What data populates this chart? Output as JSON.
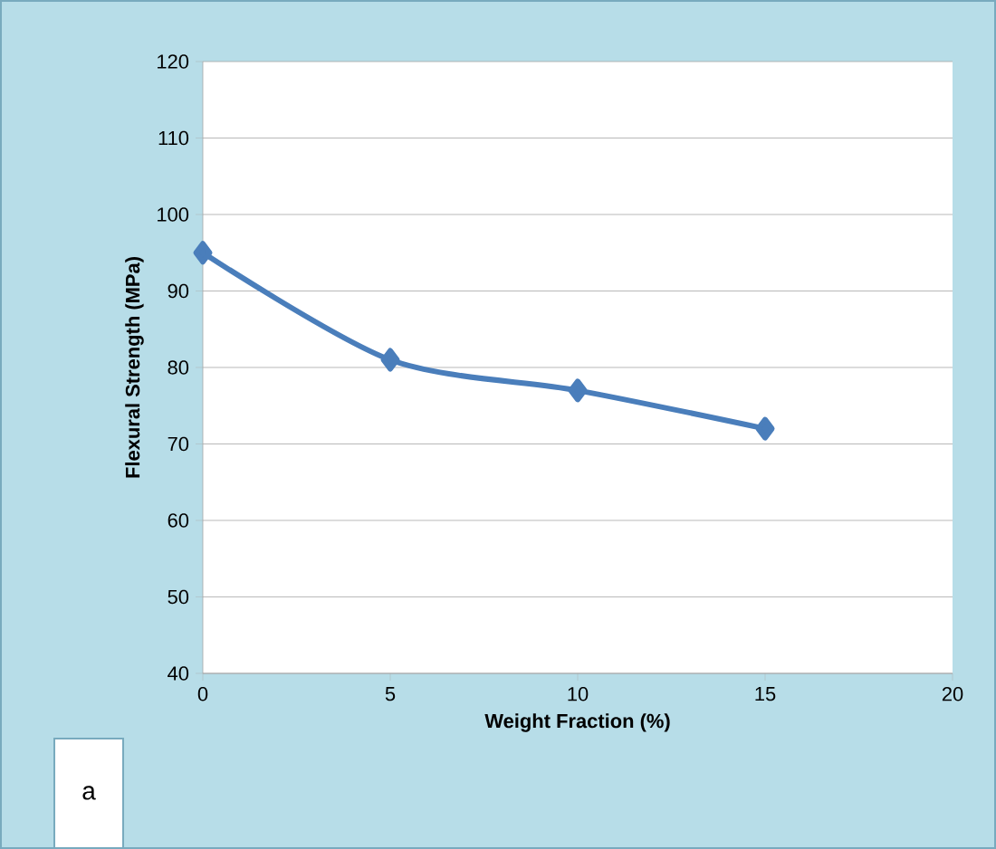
{
  "chart_data": {
    "type": "line",
    "xlabel": "Weight Fraction (%)",
    "ylabel": "Flexural Strength (MPa)",
    "x": [
      0,
      5,
      10,
      15
    ],
    "series": [
      {
        "color": "#4a7ebb",
        "values": [
          95,
          81,
          77,
          72
        ]
      }
    ],
    "xlim": [
      0,
      20
    ],
    "xticks": [
      0,
      5,
      10,
      15,
      20
    ],
    "ylim": [
      40,
      120
    ],
    "yticks": [
      40,
      50,
      60,
      70,
      80,
      90,
      100,
      110,
      120
    ],
    "grid": "y",
    "marker": "diamond",
    "line_style": "solid",
    "annotations": [
      "a"
    ]
  }
}
